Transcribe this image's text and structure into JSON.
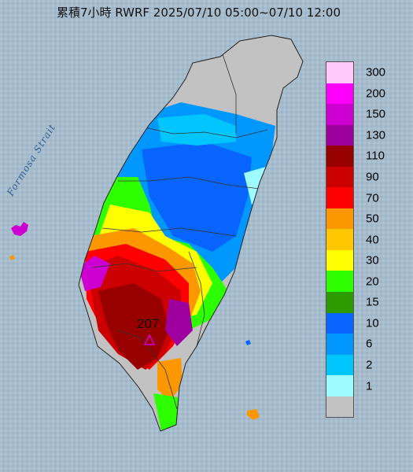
{
  "title": "累積7小時 RWRF 2025/07/10 05:00~07/10 12:00",
  "sea_label": "Formosa Strait",
  "peak": {
    "value": "207",
    "marker": "triangle-marker"
  },
  "legend": {
    "items": [
      {
        "label": "300",
        "color": "#fec8fd"
      },
      {
        "label": "200",
        "color": "#fd00fc"
      },
      {
        "label": "150",
        "color": "#cd00d1"
      },
      {
        "label": "130",
        "color": "#9e009f"
      },
      {
        "label": "110",
        "color": "#980000"
      },
      {
        "label": "90",
        "color": "#cd0000"
      },
      {
        "label": "70",
        "color": "#fe0000"
      },
      {
        "label": "50",
        "color": "#fd9700"
      },
      {
        "label": "40",
        "color": "#fdc600"
      },
      {
        "label": "30",
        "color": "#fefe00"
      },
      {
        "label": "20",
        "color": "#2dff00"
      },
      {
        "label": "15",
        "color": "#2d9b00"
      },
      {
        "label": "10",
        "color": "#0764ff"
      },
      {
        "label": "6",
        "color": "#0098ff"
      },
      {
        "label": "2",
        "color": "#01c6fe"
      },
      {
        "label": "1",
        "color": "#9efbff"
      },
      {
        "label": "",
        "color": "#c2c2c2"
      }
    ]
  }
}
